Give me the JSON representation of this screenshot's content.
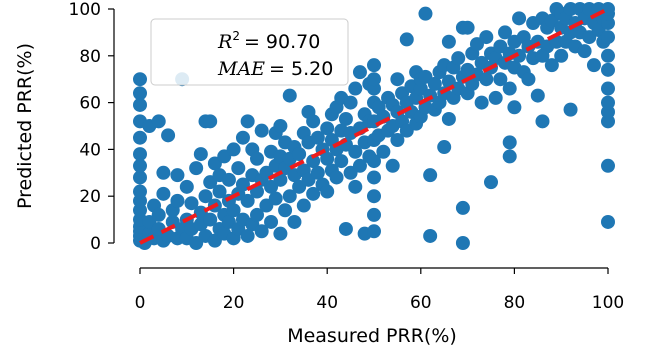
{
  "chart_data": {
    "type": "scatter",
    "xlabel": "Measured PRR(%)",
    "ylabel": "Predicted PRR(%)",
    "xlim": [
      0,
      100
    ],
    "ylim": [
      0,
      100
    ],
    "x_ticks": [
      0,
      20,
      40,
      60,
      80,
      100
    ],
    "y_ticks": [
      0,
      20,
      40,
      60,
      80,
      100
    ],
    "grid": false,
    "point_color": "#1f77b4",
    "reference_line": {
      "x": [
        0,
        100
      ],
      "y": [
        0,
        100
      ],
      "style": "dashed",
      "color": "#ee1c1c"
    },
    "annotation": {
      "r2_label": "R",
      "r2_exp": "2",
      "r2_value": "= 90.70",
      "mae_label": "MAE",
      "mae_value": "= 5.20",
      "placement": "top-left"
    },
    "points": [
      [
        0,
        1
      ],
      [
        0,
        3
      ],
      [
        0,
        5
      ],
      [
        0,
        7
      ],
      [
        0,
        10
      ],
      [
        0,
        14
      ],
      [
        0,
        18
      ],
      [
        0,
        22
      ],
      [
        0,
        28
      ],
      [
        0,
        33
      ],
      [
        0,
        38
      ],
      [
        0,
        45
      ],
      [
        0,
        52
      ],
      [
        0,
        59
      ],
      [
        0,
        64
      ],
      [
        0,
        70
      ],
      [
        1,
        0
      ],
      [
        2,
        4
      ],
      [
        2,
        9
      ],
      [
        2,
        50
      ],
      [
        3,
        2
      ],
      [
        3,
        16
      ],
      [
        4,
        6
      ],
      [
        4,
        12
      ],
      [
        4,
        52
      ],
      [
        5,
        1
      ],
      [
        5,
        21
      ],
      [
        5,
        30
      ],
      [
        6,
        3
      ],
      [
        6,
        46
      ],
      [
        7,
        9
      ],
      [
        7,
        14
      ],
      [
        8,
        2
      ],
      [
        8,
        18
      ],
      [
        8,
        29
      ],
      [
        9,
        6
      ],
      [
        9,
        70
      ],
      [
        10,
        2
      ],
      [
        10,
        10
      ],
      [
        10,
        24
      ],
      [
        11,
        6
      ],
      [
        11,
        17
      ],
      [
        12,
        0
      ],
      [
        12,
        32
      ],
      [
        13,
        8
      ],
      [
        13,
        13
      ],
      [
        13,
        38
      ],
      [
        14,
        3
      ],
      [
        14,
        20
      ],
      [
        14,
        52
      ],
      [
        15,
        10
      ],
      [
        15,
        26
      ],
      [
        15,
        52
      ],
      [
        16,
        1
      ],
      [
        16,
        16
      ],
      [
        16,
        34
      ],
      [
        17,
        6
      ],
      [
        17,
        22
      ],
      [
        17,
        29
      ],
      [
        18,
        4
      ],
      [
        18,
        12
      ],
      [
        18,
        37
      ],
      [
        19,
        9
      ],
      [
        19,
        18
      ],
      [
        19,
        27
      ],
      [
        20,
        2
      ],
      [
        20,
        14
      ],
      [
        20,
        40
      ],
      [
        21,
        6
      ],
      [
        21,
        21
      ],
      [
        21,
        32
      ],
      [
        22,
        10
      ],
      [
        22,
        25
      ],
      [
        22,
        45
      ],
      [
        23,
        3
      ],
      [
        23,
        18
      ],
      [
        23,
        52
      ],
      [
        24,
        8
      ],
      [
        24,
        29
      ],
      [
        24,
        40
      ],
      [
        25,
        12
      ],
      [
        25,
        22
      ],
      [
        25,
        36
      ],
      [
        26,
        5
      ],
      [
        26,
        27
      ],
      [
        26,
        48
      ],
      [
        27,
        16
      ],
      [
        27,
        30
      ],
      [
        28,
        9
      ],
      [
        28,
        24
      ],
      [
        28,
        39
      ],
      [
        29,
        19
      ],
      [
        29,
        33
      ],
      [
        29,
        47
      ],
      [
        30,
        4
      ],
      [
        30,
        27
      ],
      [
        30,
        37
      ],
      [
        30,
        50
      ],
      [
        31,
        14
      ],
      [
        31,
        32
      ],
      [
        31,
        43
      ],
      [
        32,
        20
      ],
      [
        32,
        36
      ],
      [
        32,
        63
      ],
      [
        33,
        9
      ],
      [
        33,
        29
      ],
      [
        33,
        41
      ],
      [
        34,
        24
      ],
      [
        34,
        38
      ],
      [
        35,
        16
      ],
      [
        35,
        31
      ],
      [
        35,
        47
      ],
      [
        36,
        27
      ],
      [
        36,
        43
      ],
      [
        36,
        56
      ],
      [
        37,
        21
      ],
      [
        37,
        35
      ],
      [
        37,
        52
      ],
      [
        38,
        30
      ],
      [
        38,
        45
      ],
      [
        39,
        25
      ],
      [
        39,
        40
      ],
      [
        40,
        22
      ],
      [
        40,
        36
      ],
      [
        40,
        49
      ],
      [
        41,
        31
      ],
      [
        41,
        44
      ],
      [
        41,
        55
      ],
      [
        42,
        28
      ],
      [
        42,
        40
      ],
      [
        42,
        58
      ],
      [
        43,
        35
      ],
      [
        43,
        48
      ],
      [
        43,
        62
      ],
      [
        44,
        6
      ],
      [
        44,
        42
      ],
      [
        44,
        53
      ],
      [
        45,
        30
      ],
      [
        45,
        47
      ],
      [
        45,
        60
      ],
      [
        46,
        24
      ],
      [
        46,
        39
      ],
      [
        46,
        66
      ],
      [
        47,
        33
      ],
      [
        47,
        49
      ],
      [
        47,
        73
      ],
      [
        48,
        4
      ],
      [
        48,
        43
      ],
      [
        48,
        55
      ],
      [
        49,
        37
      ],
      [
        49,
        52
      ],
      [
        49,
        68
      ],
      [
        50,
        5
      ],
      [
        50,
        12
      ],
      [
        50,
        20
      ],
      [
        50,
        28
      ],
      [
        50,
        35
      ],
      [
        50,
        44
      ],
      [
        50,
        52
      ],
      [
        50,
        60
      ],
      [
        50,
        66
      ],
      [
        50,
        70
      ],
      [
        50,
        76
      ],
      [
        51,
        46
      ],
      [
        51,
        58
      ],
      [
        52,
        39
      ],
      [
        52,
        54
      ],
      [
        53,
        48
      ],
      [
        53,
        62
      ],
      [
        54,
        33
      ],
      [
        54,
        50
      ],
      [
        54,
        59
      ],
      [
        55,
        44
      ],
      [
        55,
        56
      ],
      [
        55,
        70
      ],
      [
        56,
        52
      ],
      [
        56,
        64
      ],
      [
        57,
        48
      ],
      [
        57,
        60
      ],
      [
        57,
        87
      ],
      [
        58,
        56
      ],
      [
        58,
        67
      ],
      [
        59,
        51
      ],
      [
        59,
        62
      ],
      [
        59,
        73
      ],
      [
        60,
        54
      ],
      [
        60,
        66
      ],
      [
        60,
        70
      ],
      [
        61,
        58
      ],
      [
        61,
        71
      ],
      [
        61,
        98
      ],
      [
        62,
        3
      ],
      [
        62,
        29
      ],
      [
        62,
        63
      ],
      [
        63,
        57
      ],
      [
        63,
        68
      ],
      [
        64,
        60
      ],
      [
        64,
        73
      ],
      [
        65,
        41
      ],
      [
        65,
        64
      ],
      [
        65,
        76
      ],
      [
        66,
        53
      ],
      [
        66,
        69
      ],
      [
        66,
        86
      ],
      [
        67,
        62
      ],
      [
        67,
        75
      ],
      [
        68,
        66
      ],
      [
        68,
        79
      ],
      [
        69,
        0
      ],
      [
        69,
        15
      ],
      [
        69,
        71
      ],
      [
        69,
        92
      ],
      [
        70,
        64
      ],
      [
        70,
        74
      ],
      [
        70,
        92
      ],
      [
        71,
        68
      ],
      [
        71,
        81
      ],
      [
        72,
        72
      ],
      [
        72,
        85
      ],
      [
        73,
        60
      ],
      [
        73,
        77
      ],
      [
        74,
        70
      ],
      [
        74,
        88
      ],
      [
        75,
        26
      ],
      [
        75,
        75
      ],
      [
        75,
        81
      ],
      [
        76,
        62
      ],
      [
        76,
        79
      ],
      [
        77,
        70
      ],
      [
        77,
        84
      ],
      [
        78,
        77
      ],
      [
        78,
        90
      ],
      [
        79,
        37
      ],
      [
        79,
        43
      ],
      [
        79,
        81
      ],
      [
        79,
        66
      ],
      [
        80,
        58
      ],
      [
        80,
        75
      ],
      [
        80,
        86
      ],
      [
        81,
        80
      ],
      [
        81,
        96
      ],
      [
        82,
        73
      ],
      [
        82,
        88
      ],
      [
        83,
        70
      ],
      [
        83,
        84
      ],
      [
        84,
        79
      ],
      [
        84,
        94
      ],
      [
        85,
        63
      ],
      [
        85,
        86
      ],
      [
        86,
        52
      ],
      [
        86,
        80
      ],
      [
        86,
        96
      ],
      [
        87,
        84
      ],
      [
        87,
        92
      ],
      [
        88,
        76
      ],
      [
        88,
        95
      ],
      [
        89,
        86
      ],
      [
        89,
        100
      ],
      [
        90,
        80
      ],
      [
        90,
        92
      ],
      [
        90,
        98
      ],
      [
        91,
        86
      ],
      [
        91,
        96
      ],
      [
        92,
        57
      ],
      [
        92,
        90
      ],
      [
        92,
        100
      ],
      [
        93,
        84
      ],
      [
        93,
        94
      ],
      [
        94,
        90
      ],
      [
        94,
        100
      ],
      [
        95,
        82
      ],
      [
        95,
        96
      ],
      [
        96,
        88
      ],
      [
        96,
        100
      ],
      [
        97,
        76
      ],
      [
        97,
        94
      ],
      [
        98,
        91
      ],
      [
        98,
        100
      ],
      [
        99,
        86
      ],
      [
        99,
        96
      ],
      [
        100,
        9
      ],
      [
        100,
        33
      ],
      [
        100,
        52
      ],
      [
        100,
        56
      ],
      [
        100,
        60
      ],
      [
        100,
        66
      ],
      [
        100,
        74
      ],
      [
        100,
        80
      ],
      [
        100,
        88
      ],
      [
        100,
        94
      ],
      [
        100,
        98
      ],
      [
        100,
        100
      ]
    ]
  }
}
